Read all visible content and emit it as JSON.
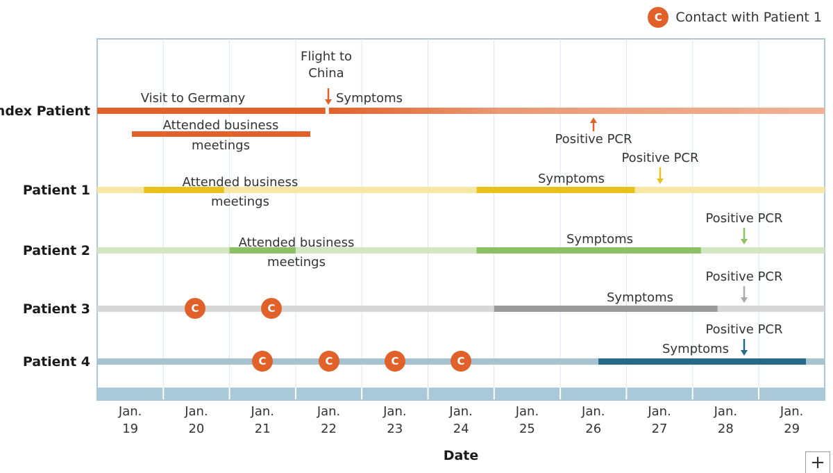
{
  "legend": {
    "icon_letter": "C",
    "label": "Contact with Patient 1"
  },
  "expand_icon": "+",
  "chart_data": {
    "type": "timeline",
    "xlabel": "Date",
    "dates": [
      "Jan.\n19",
      "Jan.\n20",
      "Jan.\n21",
      "Jan.\n22",
      "Jan.\n23",
      "Jan.\n24",
      "Jan.\n25",
      "Jan.\n26",
      "Jan.\n27",
      "Jan.\n28",
      "Jan.\n29"
    ],
    "xlim": [
      "Jan. 19",
      "Jan. 29"
    ],
    "contact_color": "#e0622a",
    "rows": [
      {
        "name": "Index Patient",
        "color": "#e0622a",
        "periods": [
          {
            "label": "Visit to Germany",
            "start": "Jan. 19",
            "end": "Jan. 22",
            "kind": "solid"
          },
          {
            "label": "Symptoms",
            "start": "Jan. 22",
            "end": "Jan. 29",
            "kind": "fade"
          },
          {
            "label": "Attended business meetings",
            "start": "Jan. 19",
            "end": "Jan. 21",
            "kind": "sub"
          }
        ],
        "events": [
          {
            "label": "Flight to China",
            "date": "Jan. 22",
            "direction": "down"
          },
          {
            "label": "Positive PCR",
            "date": "Jan. 26",
            "direction": "up"
          }
        ],
        "contacts": []
      },
      {
        "name": "Patient 1",
        "color": "#e8c21b",
        "periods": [
          {
            "label": "Attended business meetings",
            "start": "Jan. 20",
            "end": "Jan. 21"
          },
          {
            "label": "Symptoms",
            "start": "Jan. 24",
            "end": "Jan. 27"
          }
        ],
        "events": [
          {
            "label": "Positive PCR",
            "date": "Jan. 27",
            "direction": "down"
          }
        ],
        "contacts": []
      },
      {
        "name": "Patient 2",
        "color": "#8cc063",
        "periods": [
          {
            "label": "Attended business meetings",
            "start": "Jan. 21",
            "end": "Jan. 22"
          },
          {
            "label": "Symptoms",
            "start": "Jan. 24",
            "end": "Jan. 28"
          }
        ],
        "events": [
          {
            "label": "Positive PCR",
            "date": "Jan. 28",
            "direction": "down"
          }
        ],
        "contacts": []
      },
      {
        "name": "Patient 3",
        "color": "#9b9b9b",
        "periods": [
          {
            "label": "Symptoms",
            "start": "Jan. 25",
            "end": "Jan. 28"
          }
        ],
        "events": [
          {
            "label": "Positive PCR",
            "date": "Jan. 28",
            "direction": "down"
          }
        ],
        "contacts": [
          "Jan. 20",
          "Jan. 21"
        ]
      },
      {
        "name": "Patient 4",
        "color": "#246a88",
        "periods": [
          {
            "label": "Symptoms",
            "start": "Jan. 26",
            "end": "Jan. 29"
          }
        ],
        "events": [
          {
            "label": "Positive PCR",
            "date": "Jan. 28",
            "direction": "down"
          }
        ],
        "contacts": [
          "Jan. 21",
          "Jan. 22",
          "Jan. 23",
          "Jan. 24"
        ]
      }
    ]
  }
}
